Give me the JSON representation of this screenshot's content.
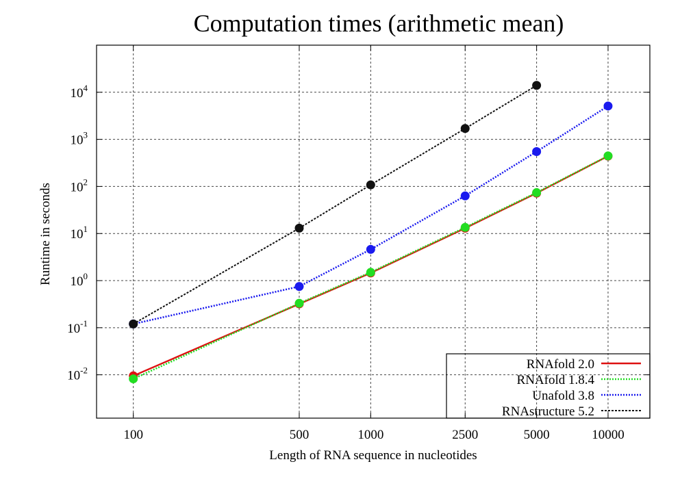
{
  "chart_data": {
    "type": "line",
    "title": "Computation times (arithmetic mean)",
    "xlabel": "Length of RNA sequence in nucleotides",
    "ylabel": "Runtime in seconds",
    "x_scale": "log",
    "y_scale": "log",
    "xlim": [
      70,
      15000
    ],
    "ylim": [
      0.0012,
      100000
    ],
    "x_ticks": [
      100,
      500,
      1000,
      2500,
      5000,
      10000
    ],
    "x_tick_labels": [
      "100",
      "500",
      "1000",
      "2500",
      "5000",
      "10000"
    ],
    "y_ticks": [
      {
        "value": 0.01,
        "base": "10",
        "exp": "-2"
      },
      {
        "value": 0.1,
        "base": "10",
        "exp": "-1"
      },
      {
        "value": 1,
        "base": "10",
        "exp": "0"
      },
      {
        "value": 10,
        "base": "10",
        "exp": "1"
      },
      {
        "value": 100,
        "base": "10",
        "exp": "2"
      },
      {
        "value": 1000,
        "base": "10",
        "exp": "3"
      },
      {
        "value": 10000,
        "base": "10",
        "exp": "4"
      }
    ],
    "grid": true,
    "legend_position": "bottom-right",
    "series": [
      {
        "name": "RNAfold 2.0",
        "color": "#dd1111",
        "line_style": "solid",
        "x": [
          100,
          500,
          1000,
          2500,
          5000,
          10000
        ],
        "y": [
          0.0095,
          0.32,
          1.45,
          13,
          72,
          440
        ]
      },
      {
        "name": "RNAfold 1.8.4",
        "color": "#22dd22",
        "line_style": "dotted",
        "x": [
          100,
          500,
          1000,
          2500,
          5000,
          10000
        ],
        "y": [
          0.0082,
          0.33,
          1.5,
          13.5,
          74,
          445
        ]
      },
      {
        "name": "Unafold 3.8",
        "color": "#1a1aee",
        "line_style": "dotted",
        "x": [
          100,
          500,
          1000,
          2500,
          5000,
          10000
        ],
        "y": [
          0.12,
          0.75,
          4.6,
          63,
          550,
          5100
        ]
      },
      {
        "name": "RNAstructure 5.2",
        "color": "#111111",
        "line_style": "dashed",
        "x": [
          100,
          500,
          1000,
          2500,
          5000
        ],
        "y": [
          0.12,
          13,
          108,
          1700,
          14000
        ]
      }
    ]
  }
}
